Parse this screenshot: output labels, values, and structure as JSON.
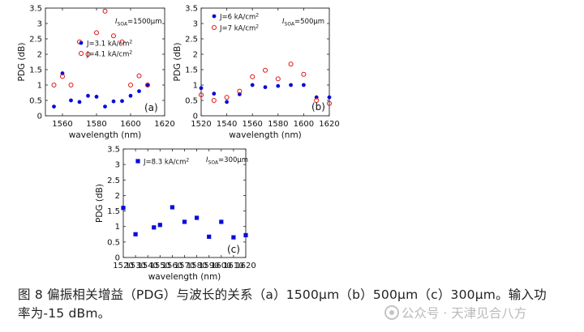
{
  "chart_data": [
    {
      "id": "a",
      "type": "scatter",
      "panel_label": "(a)",
      "xlabel": "wavelength (nm)",
      "ylabel": "PDG (dB)",
      "xlim": [
        1550,
        1620
      ],
      "ylim": [
        0,
        3.5
      ],
      "xticks": [
        "1560",
        "1580",
        "1600",
        "1620"
      ],
      "yticks": [
        "0",
        "0.5",
        "1",
        "1.5",
        "2",
        "2.5",
        "3",
        "3.5"
      ],
      "annotation": {
        "prefix": "I",
        "sub": "SOA",
        "suffix": "=1500μm"
      },
      "series": [
        {
          "name": "J=3.1 kA/cm²",
          "label_main": "J=3.1 kA/cm",
          "label_sup": "2",
          "marker": "filled-circle",
          "color": "#0a0adc",
          "x": [
            1555,
            1560,
            1565,
            1570,
            1575,
            1580,
            1585,
            1590,
            1595,
            1600,
            1605,
            1610
          ],
          "y": [
            0.3,
            1.38,
            0.5,
            0.45,
            0.65,
            0.62,
            0.3,
            0.47,
            0.48,
            0.65,
            0.8,
            0.99
          ]
        },
        {
          "name": "J=4.1 kA/cm²",
          "label_main": "J=4.1 kA/cm",
          "label_sup": "2",
          "marker": "open-circle",
          "color": "#e01010",
          "x": [
            1555,
            1560,
            1565,
            1570,
            1575,
            1580,
            1585,
            1590,
            1595,
            1600,
            1605,
            1610
          ],
          "y": [
            1.0,
            1.28,
            1.0,
            2.4,
            2.0,
            2.7,
            3.4,
            2.6,
            2.4,
            1.0,
            1.3,
            1.0
          ]
        }
      ]
    },
    {
      "id": "b",
      "type": "scatter",
      "panel_label": "(b)",
      "xlabel": "wavelength (nm)",
      "ylabel": "PDG (dB)",
      "xlim": [
        1520,
        1620
      ],
      "ylim": [
        0,
        3.5
      ],
      "xticks": [
        "1520",
        "1540",
        "1560",
        "1580",
        "1600",
        "1620"
      ],
      "yticks": [
        "0",
        "0.5",
        "1",
        "1.5",
        "2",
        "2.5",
        "3",
        "3.5"
      ],
      "annotation": {
        "prefix": "I",
        "sub": "SOA",
        "suffix": "=500μm"
      },
      "series": [
        {
          "name": "J=6 kA/cm²",
          "label_main": "J=6 kA/cm",
          "label_sup": "2",
          "marker": "filled-circle",
          "color": "#0a0adc",
          "x": [
            1520,
            1530,
            1540,
            1550,
            1560,
            1570,
            1580,
            1590,
            1600,
            1610,
            1620
          ],
          "y": [
            0.9,
            0.72,
            0.45,
            0.7,
            1.0,
            0.93,
            0.97,
            1.0,
            1.0,
            0.6,
            0.6
          ]
        },
        {
          "name": "J=7 kA/cm²",
          "label_main": "J=7 kA/cm",
          "label_sup": "2",
          "marker": "open-circle",
          "color": "#e01010",
          "x": [
            1520,
            1530,
            1540,
            1550,
            1560,
            1570,
            1580,
            1590,
            1600,
            1610,
            1620
          ],
          "y": [
            0.68,
            0.5,
            0.6,
            0.8,
            1.27,
            1.48,
            1.2,
            1.68,
            1.35,
            0.5,
            0.4
          ]
        }
      ]
    },
    {
      "id": "c",
      "type": "scatter",
      "panel_label": "(c)",
      "xlabel": "wavelength (nm)",
      "ylabel": "PDG (dB)",
      "xlim": [
        1520,
        1620
      ],
      "ylim": [
        0,
        3.5
      ],
      "xticks": [
        "1520",
        "1530",
        "1540",
        "1550",
        "1560",
        "1570",
        "1580",
        "1590",
        "1600",
        "1610",
        "1620"
      ],
      "yticks": [
        "0",
        "0.5",
        "1",
        "1.5",
        "2",
        "2.5",
        "3",
        "3.5"
      ],
      "annotation": {
        "prefix": "I",
        "sub": "SOA",
        "suffix": "=300μm"
      },
      "series": [
        {
          "name": "J=8.3 kA/cm²",
          "label_main": "J=8.3 kA/cm",
          "label_sup": "2",
          "marker": "filled-square",
          "color": "#0a0adc",
          "x": [
            1520,
            1530,
            1545,
            1550,
            1560,
            1570,
            1580,
            1590,
            1600,
            1610,
            1620
          ],
          "y": [
            1.6,
            0.75,
            0.97,
            1.05,
            1.62,
            1.15,
            1.28,
            0.67,
            1.15,
            0.65,
            0.72
          ]
        }
      ]
    }
  ],
  "caption": {
    "line1": "图 8  偏振相关增益（PDG）与波长的关系（a）1500μm（b）500μm（c）300μm。输入功",
    "line2": "率为-15 dBm。"
  },
  "watermark": "公众号 · 天津见合八方"
}
